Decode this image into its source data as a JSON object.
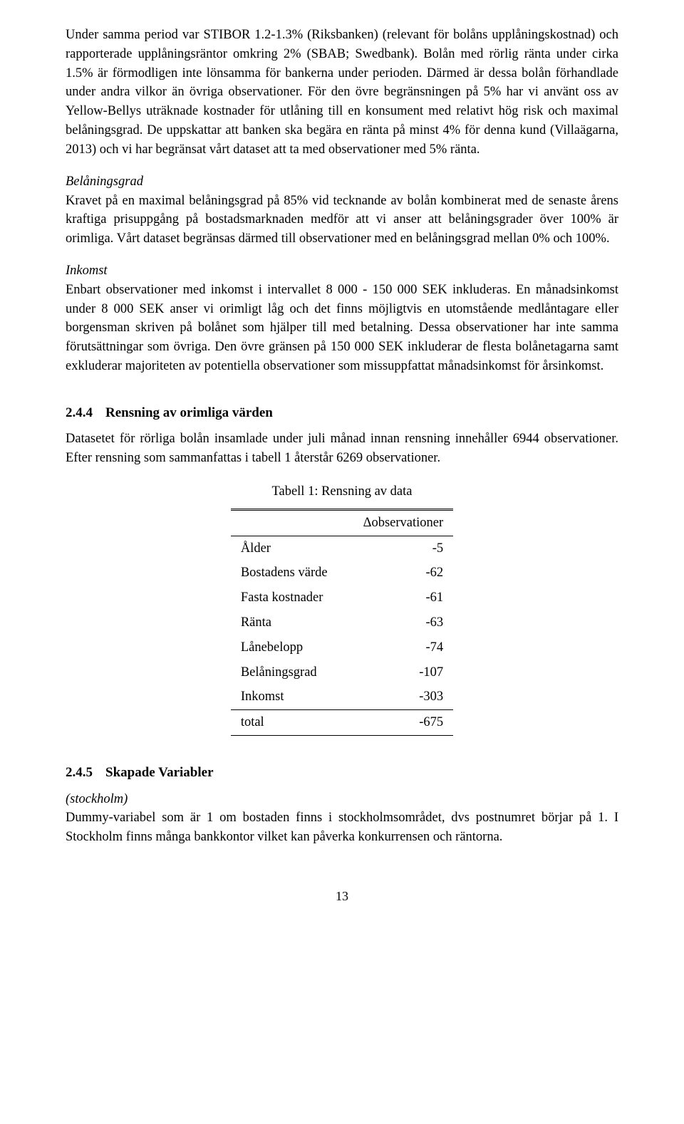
{
  "para1": "Under samma period var STIBOR 1.2-1.3% (Riksbanken) (relevant för bolåns upplåningskostnad) och rapporterade upplåningsräntor omkring 2% (SBAB; Swedbank). Bolån med rörlig ränta under cirka 1.5% är förmodligen inte lönsamma för bankerna under perioden. Därmed är dessa bolån förhandlade under andra vilkor än övriga observationer. För den övre begränsningen på 5% har vi använt oss av Yellow-Bellys uträknade kostnader för utlåning till en konsument med relativt hög risk och maximal belåningsgrad. De uppskattar att banken ska begära en ränta på minst 4% för denna kund (Villaägarna, 2013) och vi har begränsat vårt dataset att ta med observationer med 5% ränta.",
  "belaning_label": "Belåningsgrad",
  "belaning_text": "Kravet på en maximal belåningsgrad på 85% vid tecknande av bolån kombinerat med de senaste årens kraftiga prisuppgång på bostadsmarknaden medför att vi anser att belåningsgrader över 100% är orimliga. Vårt dataset begränsas därmed till observationer med en belåningsgrad mellan 0% och 100%.",
  "inkomst_label": "Inkomst",
  "inkomst_text": "Enbart observationer med inkomst i intervallet 8 000 - 150 000 SEK inkluderas. En månadsinkomst under 8 000 SEK anser vi orimligt låg och det finns möjligtvis en utomstående medlåntagare eller borgensman skriven på bolånet som hjälper till med betalning. Dessa observationer har inte samma förutsättningar som övriga. Den övre gränsen på 150 000 SEK inkluderar de flesta bolånetagarna samt exkluderar majoriteten av potentiella observationer som missuppfattat månadsinkomst för årsinkomst.",
  "sec244_num": "2.4.4",
  "sec244_title": "Rensning av orimliga värden",
  "sec244_text": "Datasetet för rörliga bolån insamlade under juli månad innan rensning innehåller 6944 observationer. Efter rensning som sammanfattas i tabell 1 återstår 6269 observationer.",
  "table_caption": "Tabell 1: Rensning av data",
  "table": {
    "header": "Δobservationer",
    "rows": [
      {
        "label": "Ålder",
        "value": "-5"
      },
      {
        "label": "Bostadens värde",
        "value": "-62"
      },
      {
        "label": "Fasta kostnader",
        "value": "-61"
      },
      {
        "label": "Ränta",
        "value": "-63"
      },
      {
        "label": "Lånebelopp",
        "value": "-74"
      },
      {
        "label": "Belåningsgrad",
        "value": "-107"
      },
      {
        "label": "Inkomst",
        "value": "-303"
      }
    ],
    "total_label": "total",
    "total_value": "-675"
  },
  "sec245_num": "2.4.5",
  "sec245_title": "Skapade Variabler",
  "stockholm_label": "(stockholm)",
  "stockholm_text": "Dummy-variabel som är 1 om bostaden finns i stockholmsområdet, dvs postnumret börjar på 1. I Stockholm finns många bankkontor vilket kan påverka konkurrensen och räntorna.",
  "page_number": "13"
}
